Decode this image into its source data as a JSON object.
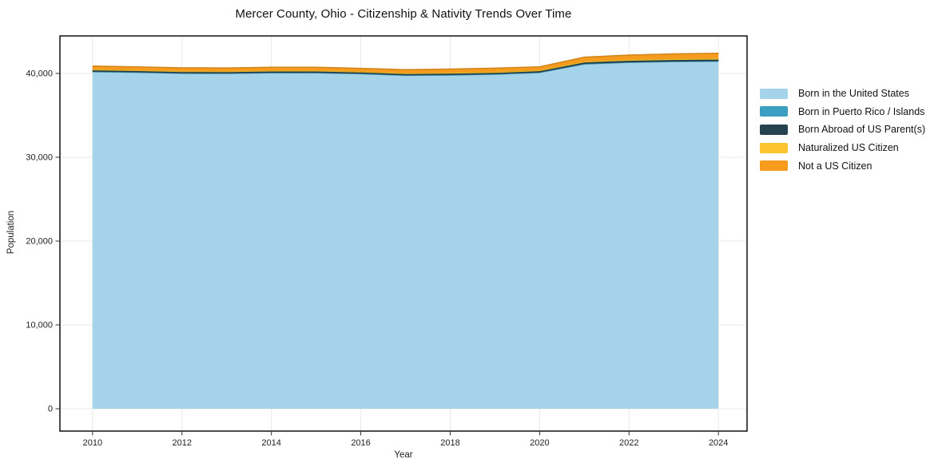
{
  "chart_data": {
    "type": "area",
    "stacked": true,
    "title": "Mercer County, Ohio - Citizenship & Nativity Trends Over Time",
    "xlabel": "Year",
    "ylabel": "Population",
    "x": [
      2010,
      2011,
      2012,
      2013,
      2014,
      2015,
      2016,
      2017,
      2018,
      2019,
      2020,
      2021,
      2022,
      2023,
      2024
    ],
    "series": [
      {
        "name": "Born in the United States",
        "color": "#A5D3E9",
        "values": [
          40190,
          40110,
          40000,
          39990,
          40070,
          40060,
          39950,
          39760,
          39800,
          39890,
          40095,
          41100,
          41300,
          41400,
          41430
        ]
      },
      {
        "name": "Born in Puerto Rico / Islands",
        "color": "#3C9EC1",
        "values": [
          25,
          30,
          20,
          15,
          20,
          25,
          30,
          20,
          15,
          20,
          25,
          40,
          35,
          30,
          45
        ]
      },
      {
        "name": "Born Abroad of US Parent(s)",
        "color": "#24424F",
        "values": [
          160,
          150,
          155,
          150,
          145,
          150,
          140,
          150,
          155,
          150,
          160,
          170,
          180,
          175,
          185
        ]
      },
      {
        "name": "Naturalized US Citizen",
        "color": "#FBC32D",
        "values": [
          125,
          120,
          115,
          120,
          125,
          130,
          120,
          125,
          130,
          135,
          130,
          150,
          160,
          165,
          170
        ]
      },
      {
        "name": "Not a US Citizen",
        "color": "#F69B1E",
        "values": [
          380,
          370,
          375,
          380,
          375,
          380,
          370,
          400,
          420,
          430,
          380,
          480,
          520,
          560,
          570
        ]
      }
    ],
    "xticks": [
      2010,
      2012,
      2014,
      2016,
      2018,
      2020,
      2022,
      2024
    ],
    "yticks": [
      0,
      10000,
      20000,
      30000,
      40000
    ],
    "ytick_labels": [
      "0",
      "10,000",
      "20,000",
      "30,000",
      "40,000"
    ],
    "xlim": [
      2009.27,
      2024.64
    ],
    "ylim": [
      -2667,
      44476
    ],
    "grid": true,
    "legend_position": "outside-right",
    "colors": {
      "background": "#ffffff",
      "gridline": "#e8e8e8",
      "frame": "#000000",
      "tick_text": "#222222"
    }
  }
}
